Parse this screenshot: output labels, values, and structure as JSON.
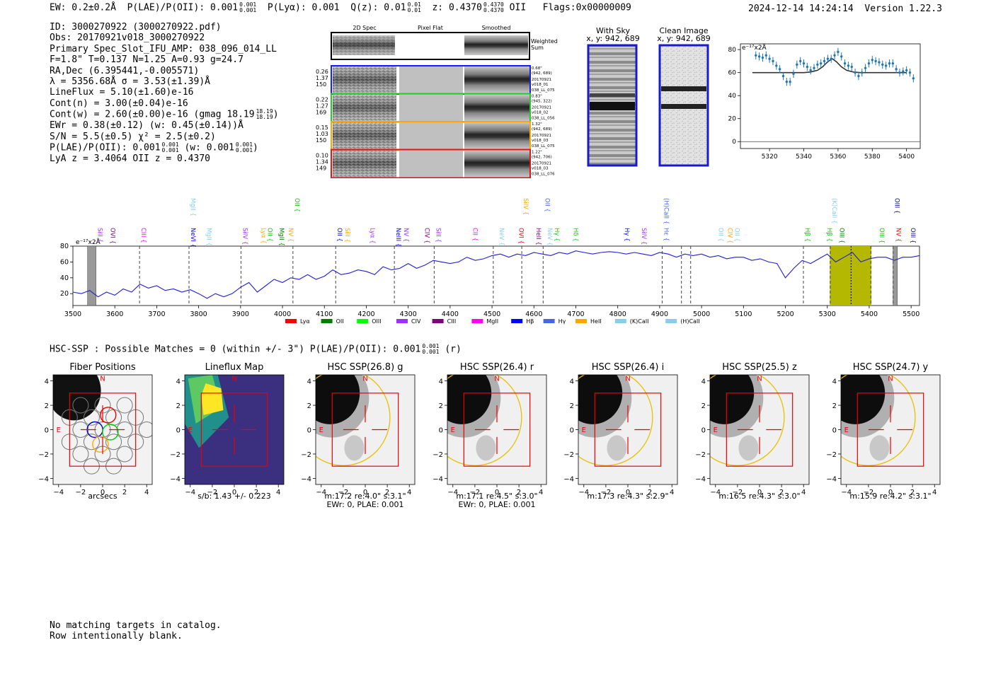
{
  "header": {
    "ew": "EW: 0.2±0.2Å",
    "plae_label": "P(LAE)/P(OII): 0.001",
    "plae_hi": "0.001",
    "plae_lo": "0.001",
    "plya": "P(Lyα): 0.001",
    "qz_label": "Q(z): 0.01",
    "qz_hi": "0.01",
    "qz_lo": "0.01",
    "z_label": "z: 0.4370",
    "z_hi": "0.4370",
    "z_lo": "0.4370",
    "z_line": "OII",
    "flags": "Flags:0x00000009",
    "datetime": "2024-12-14 14:24:14",
    "version": "Version 1.22.3"
  },
  "info": {
    "id": "ID: 3000270922 (3000270922.pdf)",
    "obs": "Obs: 20170921v018_3000270922",
    "spec": "Primary Spec_Slot_IFU_AMP: 038_096_014_LL",
    "fwhm": "F=1.8\"  T=0.137  N=1.25  A=0.93  g=24.7",
    "radec": "RA,Dec (6.395441,-0.005571)",
    "lambda": "λ = 5356.68Å  σ = 3.53(±1.39)Å",
    "lineflux": "LineFlux = 5.10(±1.60)e-16",
    "contn": "Cont(n) = 3.00(±0.04)e-16",
    "contw": "Cont(w) = 2.60(±0.00)e-16 (gmag 18.19",
    "gmag_hi": "18.19",
    "gmag_lo": "18.19",
    "ewr": "EWr = 0.38(±0.12) (w: 0.45(±0.14))Å",
    "sn": "S/N = 5.5(±0.5)  χ² = 2.5(±0.2)",
    "plae": "P(LAE)/P(OII): 0.001",
    "plae_hi": "0.001",
    "plae_lo": "0.001",
    "plae_w": "(w: 0.001",
    "plae_w_hi": "0.001",
    "plae_w_lo": "0.001",
    "lya": "LyA z = 3.4064  OII z = 0.4370"
  },
  "cutouts": {
    "col_2d": "2D Spec",
    "col_flat": "Pixel Flat",
    "col_smooth": "Smoothed",
    "weighted_sum": "Weighted Sum",
    "rows": [
      {
        "a": "0.26",
        "b": "1.37",
        "c": "150",
        "dist": "0.68\"",
        "xy": "(942, 689)",
        "date": "20170921",
        "shot": "v018_01",
        "amp": "038_LL_075",
        "color": "#1a1aff"
      },
      {
        "a": "0.22",
        "b": "1.27",
        "c": "169",
        "dist": "0.83\"",
        "xy": "(945, 322)",
        "date": "20170921",
        "shot": "v018_02",
        "amp": "038_LL_056",
        "color": "#22cc22"
      },
      {
        "a": "0.15",
        "b": "1.03",
        "c": "150",
        "dist": "1.32\"",
        "xy": "(942, 689)",
        "date": "20170921",
        "shot": "v018_03",
        "amp": "038_LL_075",
        "color": "#ffa500"
      },
      {
        "a": "0.10",
        "b": "1.34",
        "c": "149",
        "dist": "1.22\"",
        "xy": "(942, 706)",
        "date": "20170921",
        "shot": "v018_03",
        "amp": "038_LL_076",
        "color": "#ee1111"
      }
    ],
    "with_sky": "With Sky",
    "with_sky_xy": "x, y: 942, 689",
    "clean": "Clean Image",
    "clean_xy": "x, y: 942, 689"
  },
  "zoom_chart": {
    "type": "scatter",
    "ylabel": "e⁻¹⁷x2Å",
    "x_ticks": [
      5320,
      5340,
      5360,
      5380,
      5400
    ],
    "y_ticks": [
      0,
      20,
      40,
      60,
      80
    ],
    "xlim": [
      5303,
      5408
    ],
    "ylim": [
      -6,
      85
    ],
    "points_x": [
      5312,
      5314,
      5316,
      5318,
      5320,
      5322,
      5324,
      5326,
      5328,
      5330,
      5332,
      5334,
      5336,
      5338,
      5340,
      5342,
      5344,
      5346,
      5348,
      5350,
      5352,
      5354,
      5356,
      5358,
      5360,
      5362,
      5364,
      5366,
      5368,
      5370,
      5372,
      5374,
      5376,
      5378,
      5380,
      5382,
      5384,
      5386,
      5388,
      5390,
      5392,
      5394,
      5396,
      5398,
      5400,
      5402,
      5404
    ],
    "points_y": [
      75,
      74,
      73,
      75,
      72,
      70,
      66,
      63,
      57,
      52,
      52,
      59,
      67,
      70,
      68,
      65,
      62,
      64,
      67,
      68,
      70,
      72,
      72,
      75,
      78,
      74,
      68,
      66,
      65,
      60,
      57,
      60,
      64,
      68,
      71,
      70,
      69,
      67,
      66,
      68,
      68,
      63,
      60,
      61,
      62,
      60,
      55
    ],
    "model_x": [
      5310,
      5340,
      5344,
      5348,
      5351,
      5354,
      5356.68,
      5359,
      5362,
      5365,
      5369,
      5373,
      5400
    ],
    "model_y": [
      60,
      60,
      60.5,
      62,
      65,
      69.5,
      72,
      69.5,
      65,
      62,
      60.5,
      60,
      60
    ]
  },
  "full_spectrum": {
    "type": "line",
    "ylabel": "e⁻¹⁷x2Å",
    "xlim": [
      3500,
      5520
    ],
    "ylim": [
      5,
      80
    ],
    "x_ticks": [
      3500,
      3600,
      3700,
      3800,
      3900,
      4000,
      4100,
      4200,
      4300,
      4400,
      4500,
      4600,
      4700,
      4800,
      4900,
      5000,
      5100,
      5200,
      5300,
      5400,
      5500
    ],
    "y_ticks": [
      20,
      40,
      60,
      80
    ],
    "highlight_range": [
      5306,
      5405
    ],
    "highlight_center": 5356.68,
    "bad_ranges": [
      [
        3535,
        3555
      ],
      [
        5457,
        5467
      ]
    ],
    "dashed_lines": [
      3659,
      3777,
      3901,
      4025,
      4127,
      4267,
      4362,
      4503,
      4571,
      4622,
      4906,
      4952,
      4974,
      5243,
      5307,
      5404,
      5457
    ],
    "x": [
      3500,
      3520,
      3540,
      3560,
      3580,
      3600,
      3620,
      3640,
      3660,
      3680,
      3700,
      3720,
      3740,
      3760,
      3780,
      3800,
      3820,
      3840,
      3860,
      3880,
      3900,
      3920,
      3940,
      3960,
      3980,
      4000,
      4020,
      4040,
      4060,
      4080,
      4100,
      4120,
      4140,
      4160,
      4180,
      4200,
      4220,
      4240,
      4260,
      4280,
      4300,
      4320,
      4340,
      4360,
      4380,
      4400,
      4420,
      4440,
      4460,
      4480,
      4500,
      4520,
      4540,
      4560,
      4580,
      4600,
      4620,
      4640,
      4660,
      4680,
      4700,
      4720,
      4740,
      4760,
      4780,
      4800,
      4820,
      4840,
      4860,
      4880,
      4900,
      4920,
      4940,
      4960,
      4980,
      5000,
      5020,
      5040,
      5060,
      5080,
      5100,
      5120,
      5140,
      5160,
      5180,
      5200,
      5220,
      5240,
      5260,
      5280,
      5300,
      5320,
      5340,
      5360,
      5380,
      5400,
      5420,
      5440,
      5460,
      5480,
      5500,
      5520
    ],
    "y": [
      22,
      20,
      24,
      16,
      22,
      18,
      26,
      22,
      32,
      27,
      30,
      24,
      26,
      22,
      25,
      20,
      14,
      20,
      16,
      20,
      28,
      34,
      22,
      30,
      38,
      34,
      40,
      38,
      44,
      38,
      42,
      50,
      44,
      46,
      50,
      48,
      44,
      54,
      50,
      52,
      58,
      52,
      56,
      62,
      60,
      58,
      60,
      66,
      62,
      64,
      68,
      70,
      66,
      70,
      68,
      72,
      70,
      68,
      72,
      70,
      74,
      72,
      70,
      72,
      73,
      72,
      70,
      72,
      70,
      68,
      72,
      70,
      66,
      70,
      68,
      70,
      66,
      68,
      64,
      66,
      66,
      62,
      64,
      60,
      58,
      40,
      52,
      62,
      58,
      64,
      70,
      60,
      66,
      72,
      60,
      64,
      66,
      66,
      62,
      66,
      66,
      68
    ],
    "legend": [
      {
        "label": "Lyα",
        "color": "#ff0000"
      },
      {
        "label": "OII",
        "color": "#008000"
      },
      {
        "label": "OIII",
        "color": "#00ff00"
      },
      {
        "label": "CIV",
        "color": "#9b30ff"
      },
      {
        "label": "CIII",
        "color": "#800080"
      },
      {
        "label": "MgII",
        "color": "#ff00ff"
      },
      {
        "label": "Hβ",
        "color": "#0000ff"
      },
      {
        "label": "Hγ",
        "color": "#4169e1"
      },
      {
        "label": "HeII",
        "color": "#ffa500"
      },
      {
        "label": "(K)CaII",
        "color": "#87ceeb"
      },
      {
        "label": "(H)CaII",
        "color": "#87ceeb"
      }
    ],
    "lines_top": [
      {
        "label": "MgII",
        "x": 3777,
        "color": "#87ceeb"
      },
      {
        "label": "OII",
        "x": 4025,
        "color": "#00cc00"
      },
      {
        "label": "SiIV",
        "x": 4571,
        "color": "#ffa500"
      },
      {
        "label": "OII",
        "x": 4622,
        "color": "#4169e1"
      },
      {
        "label": "(H)CaII",
        "x": 4906,
        "color": "#4169e1"
      },
      {
        "label": "(K)CaII",
        "x": 5307,
        "color": "#87ceeb"
      },
      {
        "label": "OIII",
        "x": 5457,
        "color": "#0000aa"
      }
    ],
    "lines_bottom": [
      {
        "label": "SiII",
        "x": 3555,
        "color": "#9b30ff"
      },
      {
        "label": "OVI",
        "x": 3585,
        "color": "#800080"
      },
      {
        "label": "CIII",
        "x": 3659,
        "color": "#ff00ff"
      },
      {
        "label": "NeVI",
        "x": 3777,
        "color": "#0000ff"
      },
      {
        "label": "MgII",
        "x": 3815,
        "color": "#87ceeb"
      },
      {
        "label": "SiIV",
        "x": 3901,
        "color": "#9b30ff"
      },
      {
        "label": "Lyα",
        "x": 3945,
        "color": "#ffa500"
      },
      {
        "label": "OII",
        "x": 3960,
        "color": "#00cc00"
      },
      {
        "label": "MgII",
        "x": 3988,
        "color": "#008000"
      },
      {
        "label": "NV",
        "x": 4010,
        "color": "#ffa500"
      },
      {
        "label": "OII",
        "x": 4127,
        "color": "#0000ff"
      },
      {
        "label": "SiII",
        "x": 4145,
        "color": "#ffa500"
      },
      {
        "label": "Lyα",
        "x": 4205,
        "color": "#9b30ff"
      },
      {
        "label": "NeIII",
        "x": 4267,
        "color": "#0000ff"
      },
      {
        "label": "NV",
        "x": 4285,
        "color": "#9b30ff"
      },
      {
        "label": "CIV",
        "x": 4335,
        "color": "#800080"
      },
      {
        "label": "SiII",
        "x": 4362,
        "color": "#9b30ff"
      },
      {
        "label": "CII",
        "x": 4450,
        "color": "#ff00ff"
      },
      {
        "label": "NeV",
        "x": 4513,
        "color": "#87ceeb"
      },
      {
        "label": "OVI",
        "x": 4560,
        "color": "#ff0000"
      },
      {
        "label": "HeII",
        "x": 4601,
        "color": "#800080"
      },
      {
        "label": "NeV",
        "x": 4628,
        "color": "#87ceeb"
      },
      {
        "label": "Hγ",
        "x": 4645,
        "color": "#00cc00"
      },
      {
        "label": "Hδ",
        "x": 4690,
        "color": "#00cc00"
      },
      {
        "label": "Hγ",
        "x": 4812,
        "color": "#0000ff"
      },
      {
        "label": "SiIV",
        "x": 4853,
        "color": "#9b30ff"
      },
      {
        "label": "Hε",
        "x": 4906,
        "color": "#4169e1"
      },
      {
        "label": "OII",
        "x": 5036,
        "color": "#87ceeb"
      },
      {
        "label": "CIV",
        "x": 5058,
        "color": "#ffa500"
      },
      {
        "label": "OII",
        "x": 5075,
        "color": "#87ceeb"
      },
      {
        "label": "Hβ",
        "x": 5243,
        "color": "#00cc00"
      },
      {
        "label": "Hβ",
        "x": 5295,
        "color": "#00cc00"
      },
      {
        "label": "OIII",
        "x": 5325,
        "color": "#008000"
      },
      {
        "label": "OIII",
        "x": 5420,
        "color": "#00cc00"
      },
      {
        "label": "NV",
        "x": 5460,
        "color": "#ff0000"
      },
      {
        "label": "OIII",
        "x": 5495,
        "color": "#0000aa"
      }
    ]
  },
  "match": {
    "text": "HSC-SSP : Possible Matches = 0 (within +/- 3\")  P(LAE)/P(OII): 0.001",
    "hi": "0.001",
    "lo": "0.001",
    "band": "(r)"
  },
  "panels": [
    {
      "title": "Fiber Positions",
      "line1": "arcsecs",
      "line2": ""
    },
    {
      "title": "Lineflux Map",
      "line1": "s/b: 1.43 +/- 0.223",
      "line2": ""
    },
    {
      "title": "HSC SSP(26.8) g",
      "line1": "m:17.2  re:4.0\"  s:3.1\"",
      "line2": "EWr: 0, PLAE: 0.001"
    },
    {
      "title": "HSC SSP(26.4) r",
      "line1": "m:17.1  re:4.5\"  s:3.0\"",
      "line2": "EWr: 0, PLAE: 0.001"
    },
    {
      "title": "HSC SSP(26.4) i",
      "line1": "m:17.3  re:4.3\"  s:2.9\"",
      "line2": ""
    },
    {
      "title": "HSC SSP(25.5) z",
      "line1": "m:16.5  re:4.3\"  s:3.0\"",
      "line2": ""
    },
    {
      "title": "HSC SSP(24.7) y",
      "line1": "m:15.9  re:4.2\"  s:3.1\"",
      "line2": ""
    }
  ],
  "panel_axes": {
    "x_ticks": [
      "−4",
      "−2",
      "0",
      "2",
      "4"
    ],
    "y_ticks": [
      "4",
      "2",
      "0",
      "−2",
      "−4"
    ],
    "north": "N",
    "east": "E"
  },
  "footer": {
    "line1": "No matching targets in catalog.",
    "line2": "Row intentionally blank."
  }
}
